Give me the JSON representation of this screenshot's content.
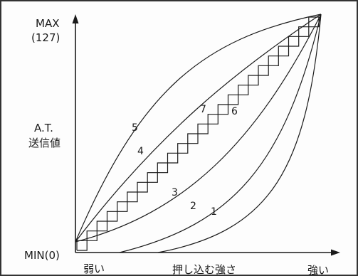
{
  "y_axis": {
    "max_label": "MAX",
    "max_value_label": "(127)",
    "title_line1": "A.T.",
    "title_line2": "送信値",
    "min_label": "MIN(0)"
  },
  "x_axis": {
    "weak_label": "弱い",
    "title": "押し込む強さ",
    "strong_label": "強い"
  },
  "curves": [
    {
      "label": "1"
    },
    {
      "label": "2"
    },
    {
      "label": "3"
    },
    {
      "label": "4"
    },
    {
      "label": "5"
    },
    {
      "label": "6"
    },
    {
      "label": "7"
    }
  ],
  "colors": {
    "line": "#1a1a1a",
    "frame": "#333333",
    "background": "#fdfdfd"
  }
}
